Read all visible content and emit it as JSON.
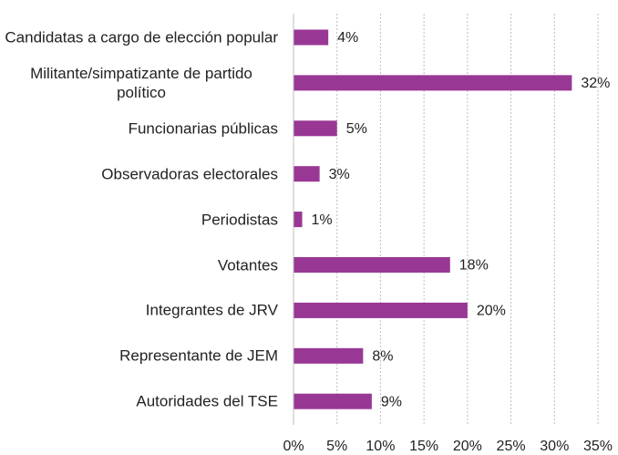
{
  "chart_data": {
    "type": "bar",
    "orientation": "horizontal",
    "categories": [
      "Candidatas a cargo de elección popular",
      "Militante/simpatizante de partido político",
      "Funcionarias públicas",
      "Observadoras electorales",
      "Periodistas",
      "Votantes",
      "Integrantes de JRV",
      "Representante de JEM",
      "Autoridades del TSE"
    ],
    "values": [
      4,
      32,
      5,
      3,
      1,
      18,
      20,
      8,
      9
    ],
    "value_labels": [
      "4%",
      "32%",
      "5%",
      "3%",
      "1%",
      "18%",
      "20%",
      "8%",
      "9%"
    ],
    "color": "#993795",
    "xlim": [
      0,
      35
    ],
    "xticks": [
      {
        "value": 0,
        "label": "0%"
      },
      {
        "value": 5,
        "label": "5%"
      },
      {
        "value": 10,
        "label": "10%"
      },
      {
        "value": 15,
        "label": "15%"
      },
      {
        "value": 20,
        "label": "20%"
      },
      {
        "value": 25,
        "label": "25%"
      },
      {
        "value": 30,
        "label": "30%"
      },
      {
        "value": 35,
        "label": "35%"
      }
    ],
    "grid": true
  }
}
